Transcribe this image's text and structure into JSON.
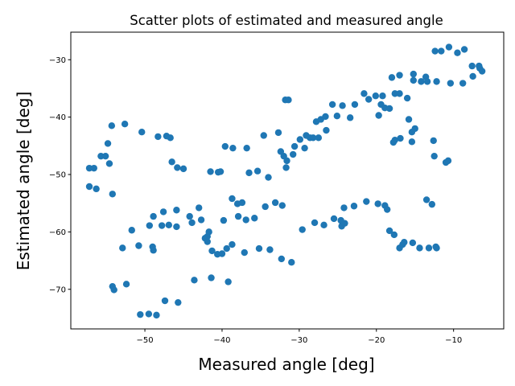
{
  "chart_data": {
    "type": "scatter",
    "title": "Scatter plots of estimated and measured angle",
    "x_label": "Measured angle [deg]",
    "y_label": "Estimated angle [deg]",
    "color": "#1f77b4",
    "xlim": [
      -59.6,
      -3.5
    ],
    "ylim": [
      -76.9,
      -25.2
    ],
    "xticks": [
      {
        "value": -50,
        "label": "−50"
      },
      {
        "value": -40,
        "label": "−40"
      },
      {
        "value": -30,
        "label": "−30"
      },
      {
        "value": -20,
        "label": "−20"
      },
      {
        "value": -10,
        "label": "−10"
      }
    ],
    "yticks": [
      {
        "value": -70,
        "label": "−70"
      },
      {
        "value": -60,
        "label": "−60"
      },
      {
        "value": -50,
        "label": "−50"
      },
      {
        "value": -40,
        "label": "−40"
      },
      {
        "value": -30,
        "label": "−30"
      }
    ],
    "x": [
      -57.2,
      -56.6,
      -57.2,
      -56.3,
      -55.7,
      -55.1,
      -54.8,
      -54.6,
      -54.3,
      -54.2,
      -54.2,
      -54.0,
      -52.9,
      -52.6,
      -52.4,
      -51.7,
      -50.8,
      -50.6,
      -50.4,
      -49.5,
      -49.4,
      -49.0,
      -48.9,
      -48.9,
      -48.5,
      -48.3,
      -47.8,
      -47.6,
      -47.4,
      -47.2,
      -46.9,
      -46.7,
      -46.5,
      -45.9,
      -45.9,
      -45.8,
      -45.7,
      -45.0,
      -44.2,
      -43.9,
      -43.6,
      -43.0,
      -42.7,
      -42.2,
      -41.9,
      -41.9,
      -41.7,
      -41.5,
      -41.4,
      -41.3,
      -40.6,
      -40.5,
      -40.2,
      -40.0,
      -39.8,
      -39.6,
      -39.4,
      -39.2,
      -38.7,
      -38.6,
      -38.7,
      -38.0,
      -37.9,
      -37.4,
      -37.1,
      -36.9,
      -36.8,
      -36.5,
      -35.8,
      -35.4,
      -35.2,
      -34.6,
      -34.4,
      -34.0,
      -33.8,
      -33.1,
      -32.7,
      -32.4,
      -32.3,
      -32.2,
      -32.0,
      -31.8,
      -31.7,
      -31.6,
      -31.4,
      -31.0,
      -30.8,
      -30.6,
      -29.9,
      -29.6,
      -29.3,
      -29.1,
      -28.6,
      -28.2,
      -28.0,
      -27.8,
      -27.5,
      -27.2,
      -26.8,
      -26.6,
      -26.5,
      -25.7,
      -25.5,
      -25.1,
      -24.6,
      -24.5,
      -24.4,
      -24.2,
      -24.1,
      -23.4,
      -22.9,
      -22.8,
      -21.6,
      -21.3,
      -21.0,
      -20.1,
      -19.7,
      -19.8,
      -19.4,
      -19.2,
      -18.9,
      -18.9,
      -18.6,
      -18.3,
      -18.3,
      -18.0,
      -17.7,
      -17.8,
      -17.6,
      -17.6,
      -17.0,
      -16.9,
      -17.0,
      -17.0,
      -16.6,
      -16.4,
      -16.0,
      -15.8,
      -15.4,
      -15.4,
      -15.3,
      -15.2,
      -15.0,
      -15.2,
      -14.4,
      -14.2,
      -13.6,
      -13.5,
      -13.4,
      -13.2,
      -12.8,
      -12.6,
      -12.5,
      -12.4,
      -12.3,
      -12.2,
      -12.2,
      -11.6,
      -11.0,
      -10.7,
      -10.6,
      -10.4,
      -9.5,
      -8.8,
      -8.6,
      -7.6,
      -7.5,
      -6.7,
      -6.6,
      -6.3
    ],
    "values": [
      -48.9,
      -48.9,
      -52.1,
      -52.5,
      -46.8,
      -46.8,
      -44.6,
      -48.1,
      -41.5,
      -53.4,
      -69.5,
      -70.1,
      -62.8,
      -41.2,
      -69.1,
      -59.7,
      -62.4,
      -74.4,
      -42.6,
      -74.3,
      -58.9,
      -62.6,
      -57.3,
      -63.2,
      -74.5,
      -43.4,
      -58.9,
      -56.5,
      -72.0,
      -43.3,
      -58.8,
      -43.6,
      -47.8,
      -56.2,
      -59.1,
      -48.8,
      -72.3,
      -49.0,
      -57.3,
      -58.4,
      -68.4,
      -55.8,
      -57.9,
      -61.1,
      -61.7,
      -60.8,
      -60.0,
      -49.5,
      -68.0,
      -63.3,
      -63.9,
      -49.6,
      -49.5,
      -63.8,
      -58.0,
      -45.1,
      -62.9,
      -68.7,
      -62.2,
      -45.4,
      -54.2,
      -55.1,
      -57.3,
      -54.9,
      -63.6,
      -57.9,
      -45.4,
      -49.7,
      -57.6,
      -49.4,
      -62.9,
      -43.2,
      -55.6,
      -50.5,
      -63.1,
      -54.9,
      -42.7,
      -46.0,
      -64.7,
      -55.4,
      -46.8,
      -37.0,
      -48.8,
      -47.6,
      -37.0,
      -65.3,
      -46.5,
      -45.1,
      -43.9,
      -59.6,
      -45.4,
      -43.2,
      -43.6,
      -43.6,
      -58.4,
      -40.8,
      -43.6,
      -40.4,
      -58.8,
      -39.9,
      -42.3,
      -37.8,
      -57.7,
      -39.8,
      -58.0,
      -59.0,
      -38.0,
      -55.8,
      -58.5,
      -40.1,
      -55.5,
      -37.8,
      -35.9,
      -54.7,
      -36.9,
      -36.3,
      -39.7,
      -55.1,
      -37.8,
      -36.3,
      -55.4,
      -38.4,
      -56.1,
      -38.5,
      -59.8,
      -33.1,
      -60.5,
      -44.4,
      -44.0,
      -35.9,
      -32.7,
      -43.7,
      -35.9,
      -62.8,
      -62.2,
      -61.8,
      -36.7,
      -40.4,
      -42.6,
      -44.3,
      -61.9,
      -32.5,
      -42.0,
      -33.6,
      -62.8,
      -33.8,
      -33.0,
      -54.4,
      -33.8,
      -62.8,
      -55.2,
      -44.1,
      -46.8,
      -28.5,
      -62.6,
      -62.8,
      -33.8,
      -28.5,
      -47.9,
      -47.6,
      -27.8,
      -34.1,
      -28.8,
      -34.1,
      -28.2,
      -31.1,
      -32.9,
      -31.1,
      -31.5,
      -32.0
    ]
  }
}
